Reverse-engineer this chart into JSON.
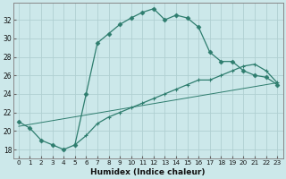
{
  "xlabel": "Humidex (Indice chaleur)",
  "bg_color": "#cce8ea",
  "grid_color": "#b0d0d2",
  "line_color": "#2e7d6e",
  "xlim": [
    -0.5,
    23.5
  ],
  "ylim": [
    17.0,
    33.8
  ],
  "yticks": [
    18,
    20,
    22,
    24,
    26,
    28,
    30,
    32
  ],
  "xticks": [
    0,
    1,
    2,
    3,
    4,
    5,
    6,
    7,
    8,
    9,
    10,
    11,
    12,
    13,
    14,
    15,
    16,
    17,
    18,
    19,
    20,
    21,
    22,
    23
  ],
  "curve1_x": [
    0,
    1,
    2,
    3,
    4,
    5,
    6,
    7,
    8,
    9,
    10,
    11,
    12,
    13,
    14,
    15,
    16,
    17,
    18,
    19,
    20,
    21,
    22,
    23
  ],
  "curve1_y": [
    21.0,
    20.3,
    19.0,
    18.5,
    18.0,
    18.5,
    24.0,
    29.5,
    30.5,
    31.5,
    32.2,
    32.8,
    33.2,
    32.0,
    32.5,
    32.2,
    31.2,
    28.5,
    27.5,
    27.5,
    26.5,
    26.0,
    25.8,
    25.0
  ],
  "curve2_x": [
    5,
    6,
    7,
    8,
    9,
    10,
    11,
    12,
    13,
    14,
    15,
    16,
    17,
    18,
    19,
    20,
    21,
    22,
    23
  ],
  "curve2_y": [
    18.5,
    19.5,
    20.8,
    21.5,
    22.0,
    22.5,
    23.0,
    23.5,
    24.0,
    24.5,
    25.0,
    25.5,
    25.5,
    26.0,
    26.5,
    27.0,
    27.2,
    26.5,
    25.2
  ],
  "curve3_x": [
    0,
    23
  ],
  "curve3_y": [
    20.5,
    25.2
  ]
}
